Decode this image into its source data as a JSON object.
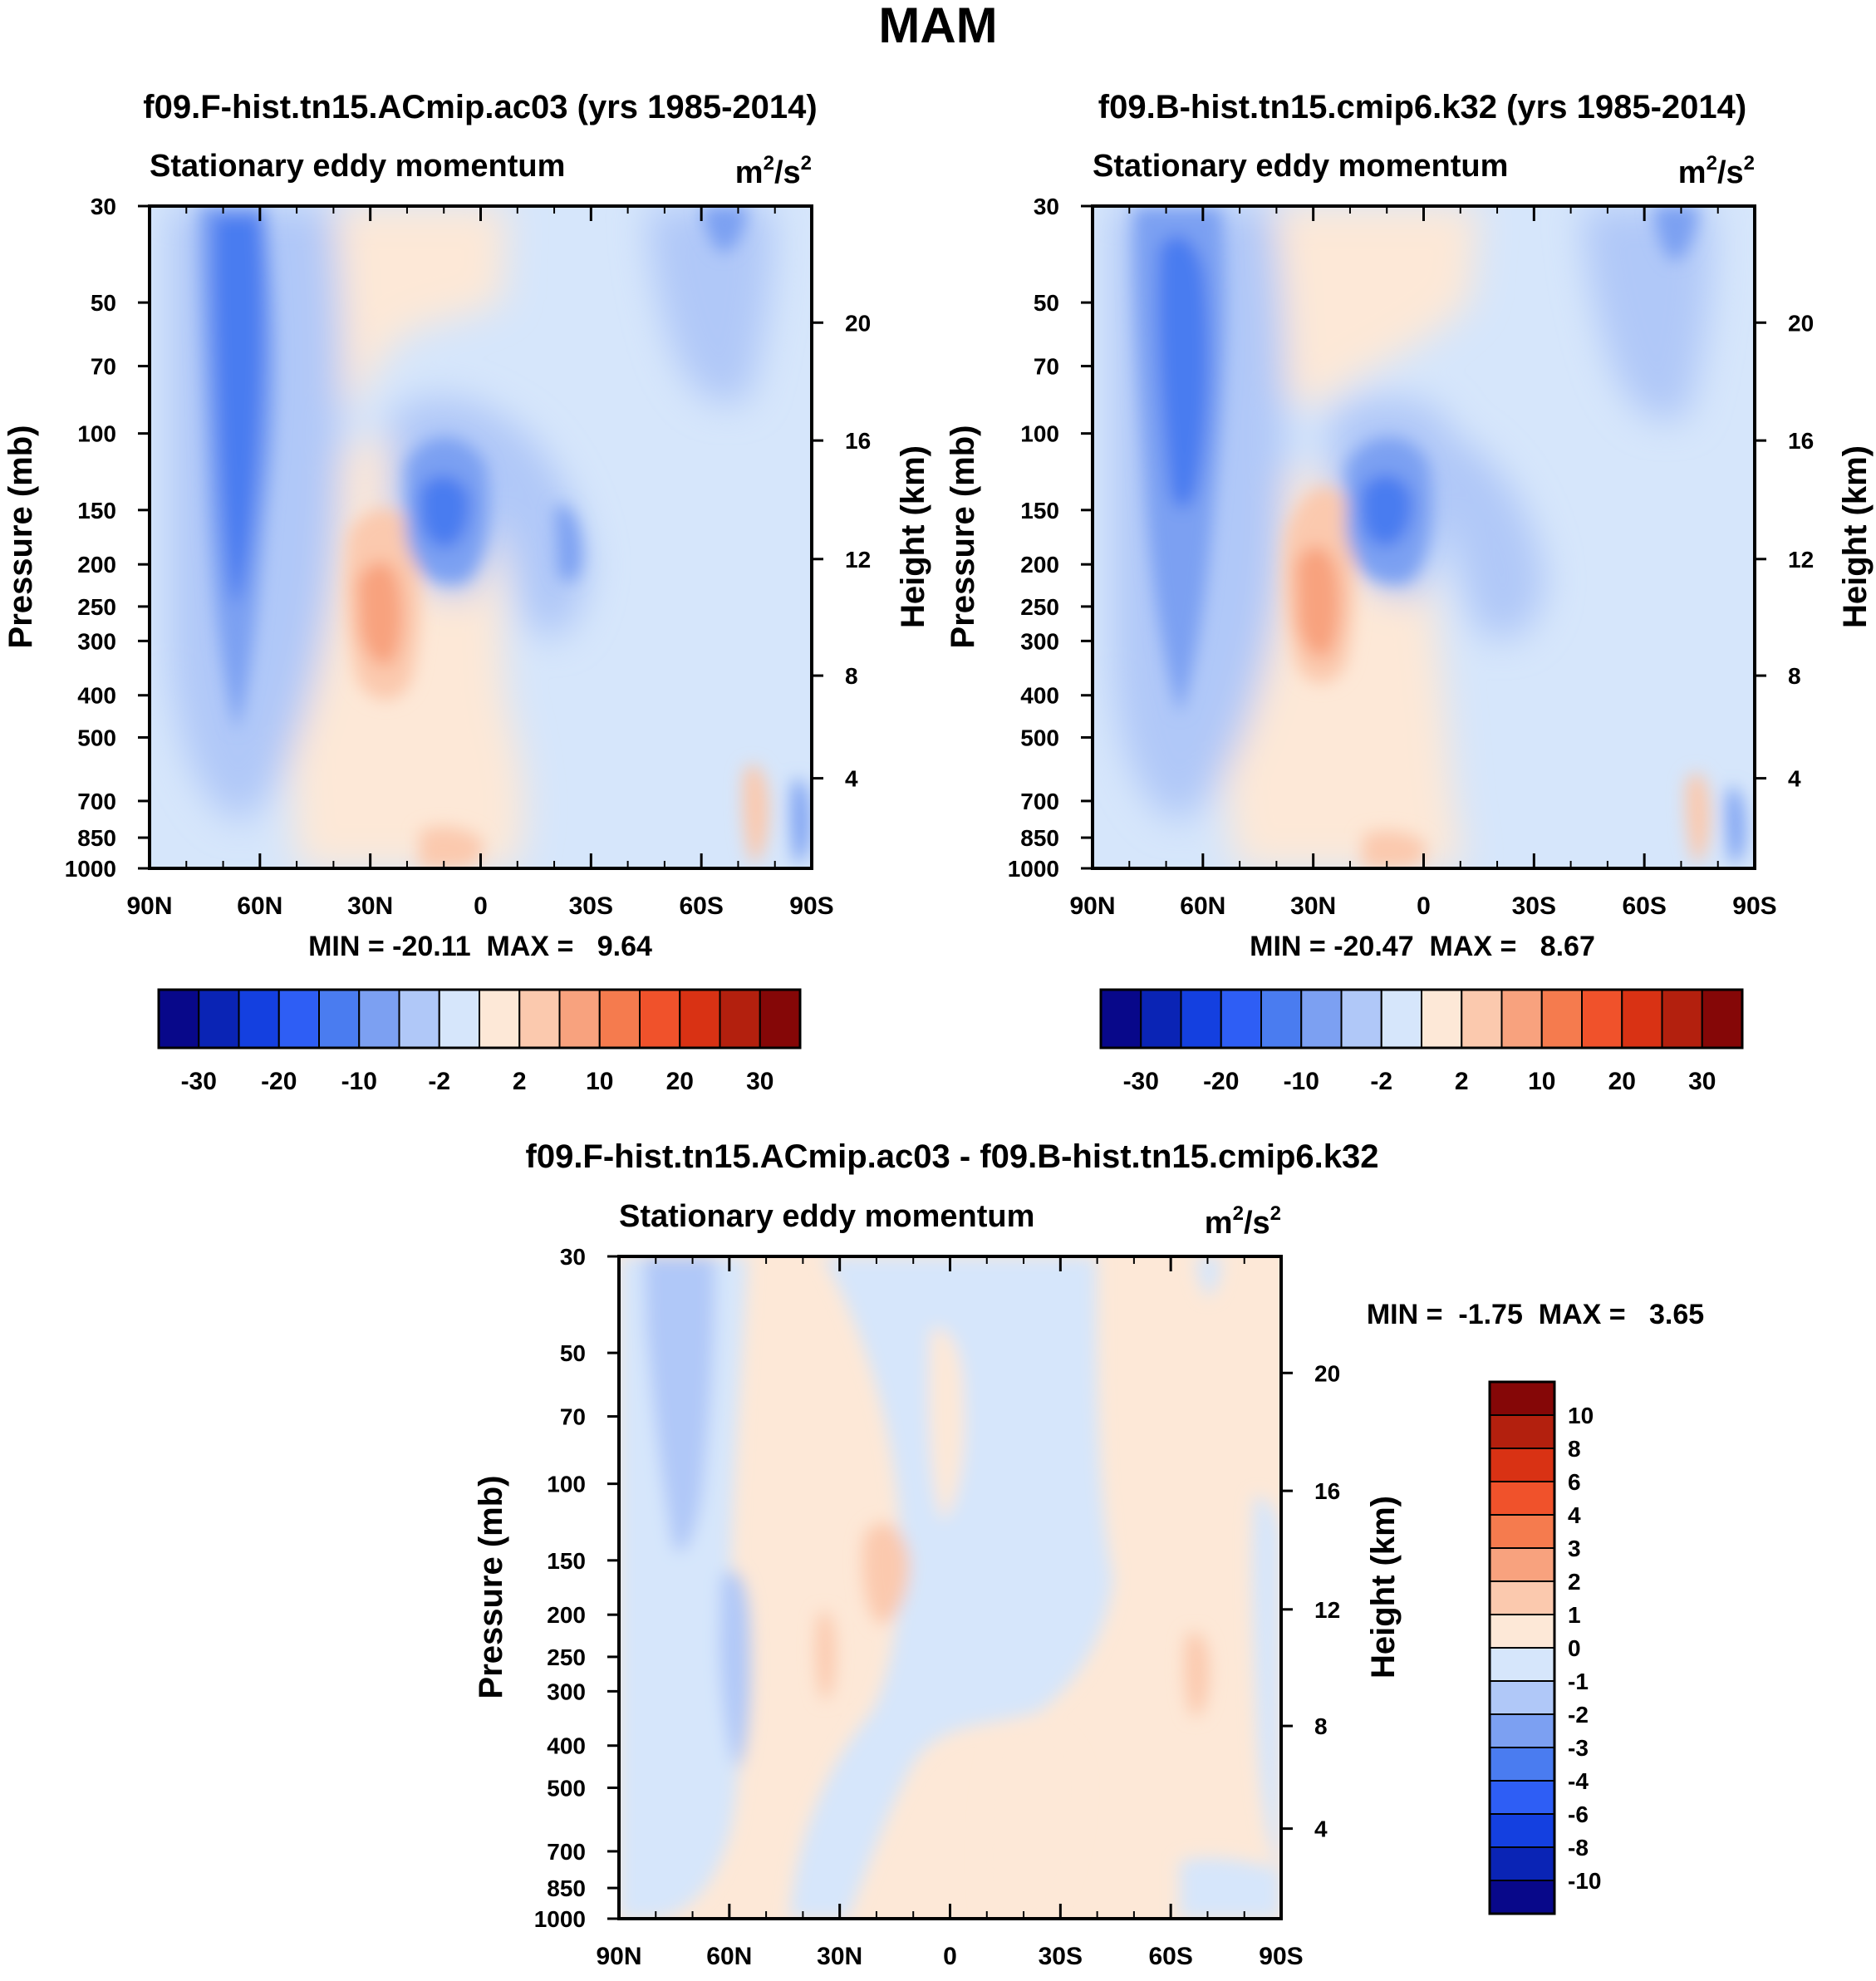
{
  "chart_data": {
    "type": "heatmap",
    "title": "MAM",
    "colors": {
      "main_scale": [
        "#08088a",
        "#0a24b5",
        "#1440e0",
        "#2e5ef5",
        "#4a7cf0",
        "#7ca0f2",
        "#b0c8f8",
        "#d6e6fb",
        "#fde8d7",
        "#fbc9ae",
        "#f8a27e",
        "#f57b4e",
        "#f0522b",
        "#d93214",
        "#b3200e",
        "#850707"
      ],
      "diff_scale": [
        "#08088a",
        "#0a24b5",
        "#1440e0",
        "#2e5ef5",
        "#4a7cf0",
        "#7ca0f2",
        "#b0c8f8",
        "#d6e6fb",
        "#fde8d7",
        "#fbc9ae",
        "#f8a27e",
        "#f57b4e",
        "#f0522b",
        "#d93214",
        "#b3200e",
        "#850707"
      ]
    },
    "panels": [
      {
        "id": "panel1",
        "title": "f09.F-hist.tn15.ACmip.ac03 (yrs 1985-2014)",
        "left_string": "Stationary eddy momentum",
        "units_base": "m",
        "units_exp1": "2",
        "units_mid": "/s",
        "units_exp2": "2",
        "ylabel": "Pressure (mb)",
        "y2label": "Height (km)",
        "xticks": [
          "90N",
          "60N",
          "30N",
          "0",
          "30S",
          "60S",
          "90S"
        ],
        "yticks": [
          "30",
          "50",
          "70",
          "100",
          "150",
          "200",
          "250",
          "300",
          "400",
          "500",
          "700",
          "850",
          "1000"
        ],
        "y2ticks": [
          "20",
          "16",
          "12",
          "8",
          "4"
        ],
        "minmax_text": "MIN = -20.11  MAX =   9.64",
        "min": -20.11,
        "max": 9.64,
        "features": [
          {
            "lat": 65,
            "p": 150,
            "value": -10
          },
          {
            "lat": -12,
            "p": 150,
            "value": -10
          },
          {
            "lat": -22,
            "p": 170,
            "value": -2
          },
          {
            "lat": 28,
            "p": 280,
            "value": 5
          },
          {
            "lat": -60,
            "p": 30,
            "value": -5
          },
          {
            "lat": -80,
            "p": 850,
            "value": 2
          }
        ]
      },
      {
        "id": "panel2",
        "title": "f09.B-hist.tn15.cmip6.k32 (yrs 1985-2014)",
        "left_string": "Stationary eddy momentum",
        "units_base": "m",
        "units_exp1": "2",
        "units_mid": "/s",
        "units_exp2": "2",
        "ylabel": "Pressure (mb)",
        "y2label": "Height (km)",
        "xticks": [
          "90N",
          "60N",
          "30N",
          "0",
          "30S",
          "60S",
          "90S"
        ],
        "yticks": [
          "30",
          "50",
          "70",
          "100",
          "150",
          "200",
          "250",
          "300",
          "400",
          "500",
          "700",
          "850",
          "1000"
        ],
        "y2ticks": [
          "20",
          "16",
          "12",
          "8",
          "4"
        ],
        "minmax_text": "MIN = -20.47  MAX =   8.67",
        "min": -20.47,
        "max": 8.67,
        "features": [
          {
            "lat": 60,
            "p": 100,
            "value": -10
          },
          {
            "lat": -12,
            "p": 150,
            "value": -10
          },
          {
            "lat": -25,
            "p": 170,
            "value": -2
          },
          {
            "lat": 27,
            "p": 260,
            "value": 5
          },
          {
            "lat": -65,
            "p": 30,
            "value": -5
          },
          {
            "lat": -75,
            "p": 850,
            "value": 2
          }
        ]
      },
      {
        "id": "panel3",
        "title": "f09.F-hist.tn15.ACmip.ac03 - f09.B-hist.tn15.cmip6.k32",
        "left_string": "Stationary eddy momentum",
        "units_base": "m",
        "units_exp1": "2",
        "units_mid": "/s",
        "units_exp2": "2",
        "ylabel": "Pressure (mb)",
        "y2label": "Height (km)",
        "xticks": [
          "90N",
          "60N",
          "30N",
          "0",
          "30S",
          "60S",
          "90S"
        ],
        "yticks": [
          "30",
          "50",
          "70",
          "100",
          "150",
          "200",
          "250",
          "300",
          "400",
          "500",
          "700",
          "850",
          "1000"
        ],
        "y2ticks": [
          "20",
          "16",
          "12",
          "8",
          "4"
        ],
        "minmax_text": "MIN =  -1.75  MAX =   3.65",
        "min": -1.75,
        "max": 3.65,
        "features": [
          {
            "lat": 73,
            "p": 100,
            "value": -1
          },
          {
            "lat": 60,
            "p": 300,
            "value": -1
          },
          {
            "lat": 18,
            "p": 170,
            "value": 1
          },
          {
            "lat": 35,
            "p": 280,
            "value": 1
          },
          {
            "lat": -65,
            "p": 270,
            "value": 1
          }
        ]
      }
    ],
    "colorbar_main": {
      "labels": [
        "-30",
        "-20",
        "-10",
        "-2",
        "2",
        "10",
        "20",
        "30"
      ]
    },
    "colorbar_diff": {
      "labels": [
        "10",
        "8",
        "6",
        "4",
        "3",
        "2",
        "1",
        "0",
        "-1",
        "-2",
        "-3",
        "-4",
        "-6",
        "-8",
        "-10"
      ]
    }
  }
}
